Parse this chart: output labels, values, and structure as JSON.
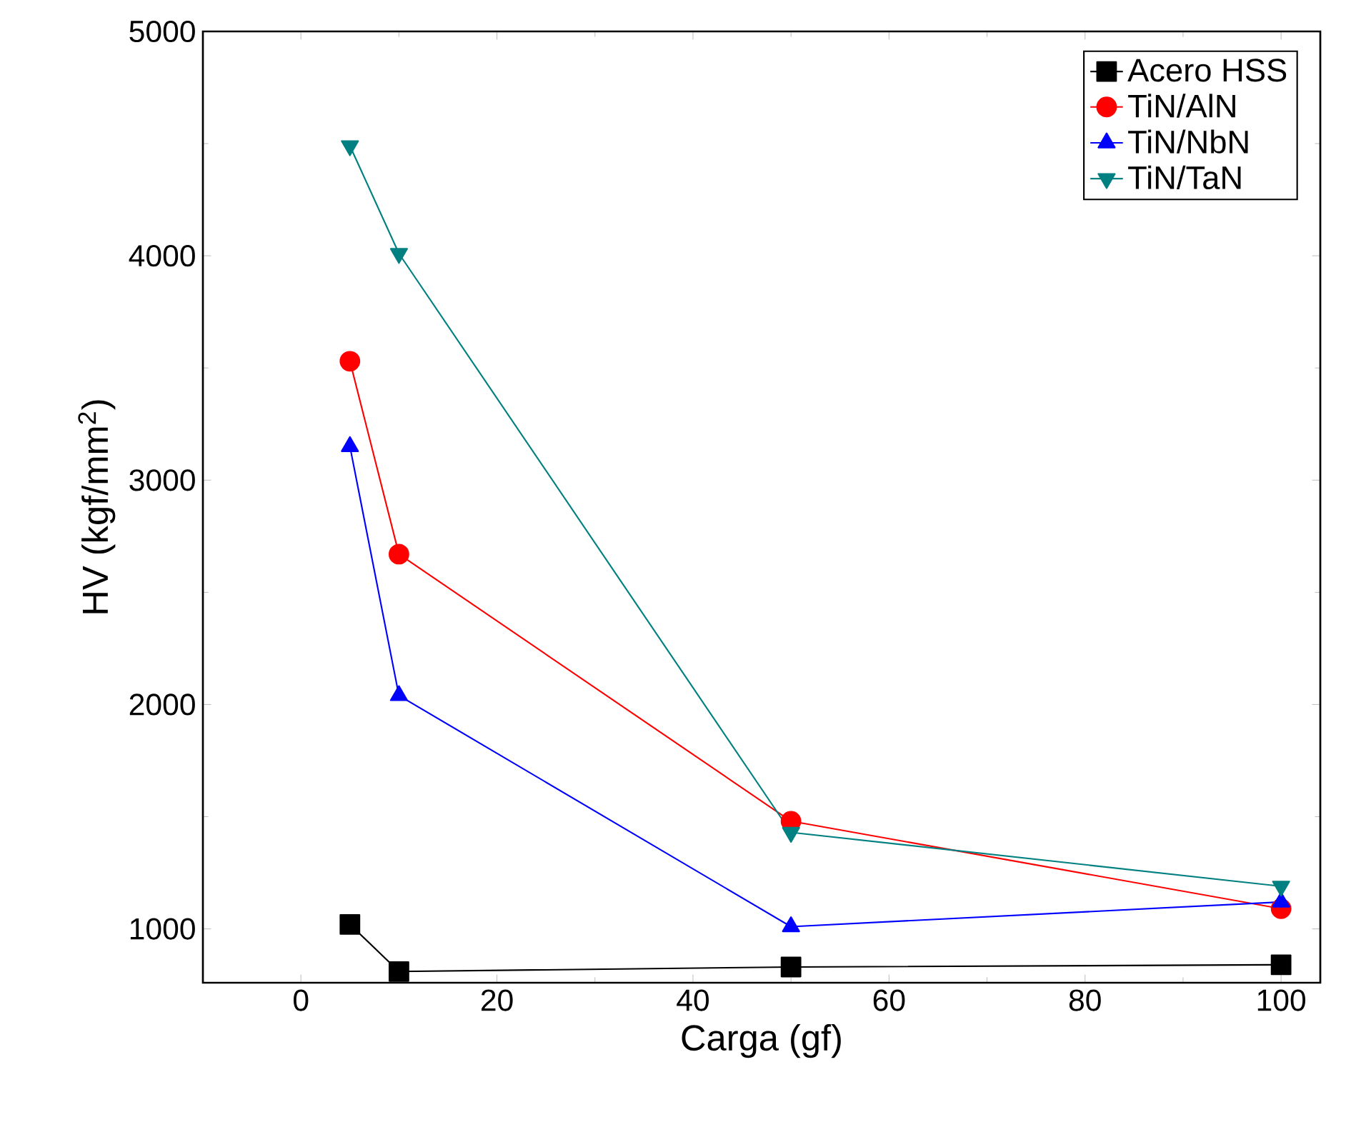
{
  "chart_data": {
    "type": "line",
    "xlabel": "Carga (gf)",
    "ylabel": "HV (kgf/mm$^{2}$)",
    "x": [
      5,
      10,
      50,
      100
    ],
    "series": [
      {
        "name": "Acero HSS",
        "color": "#000000",
        "marker": "square",
        "values": [
          1020,
          810,
          830,
          840
        ]
      },
      {
        "name": "TiN/AlN",
        "color": "#ff0000",
        "marker": "circle",
        "values": [
          3530,
          2670,
          1480,
          1090
        ]
      },
      {
        "name": "TiN/NbN",
        "color": "#0000ff",
        "marker": "triangle",
        "values": [
          3150,
          2040,
          1010,
          1120
        ]
      },
      {
        "name": "TiN/TaN",
        "color": "#008080",
        "marker": "triangle down",
        "values": [
          4490,
          4010,
          1430,
          1190
        ]
      }
    ],
    "xlim": [
      -10,
      104
    ],
    "ylim": [
      760,
      5000
    ],
    "xticks": [
      0,
      20,
      40,
      60,
      80,
      100
    ],
    "yticks": [
      1000,
      2000,
      3000,
      4000,
      5000
    ],
    "legend": "top right",
    "grid": false,
    "line_style": "solid"
  }
}
